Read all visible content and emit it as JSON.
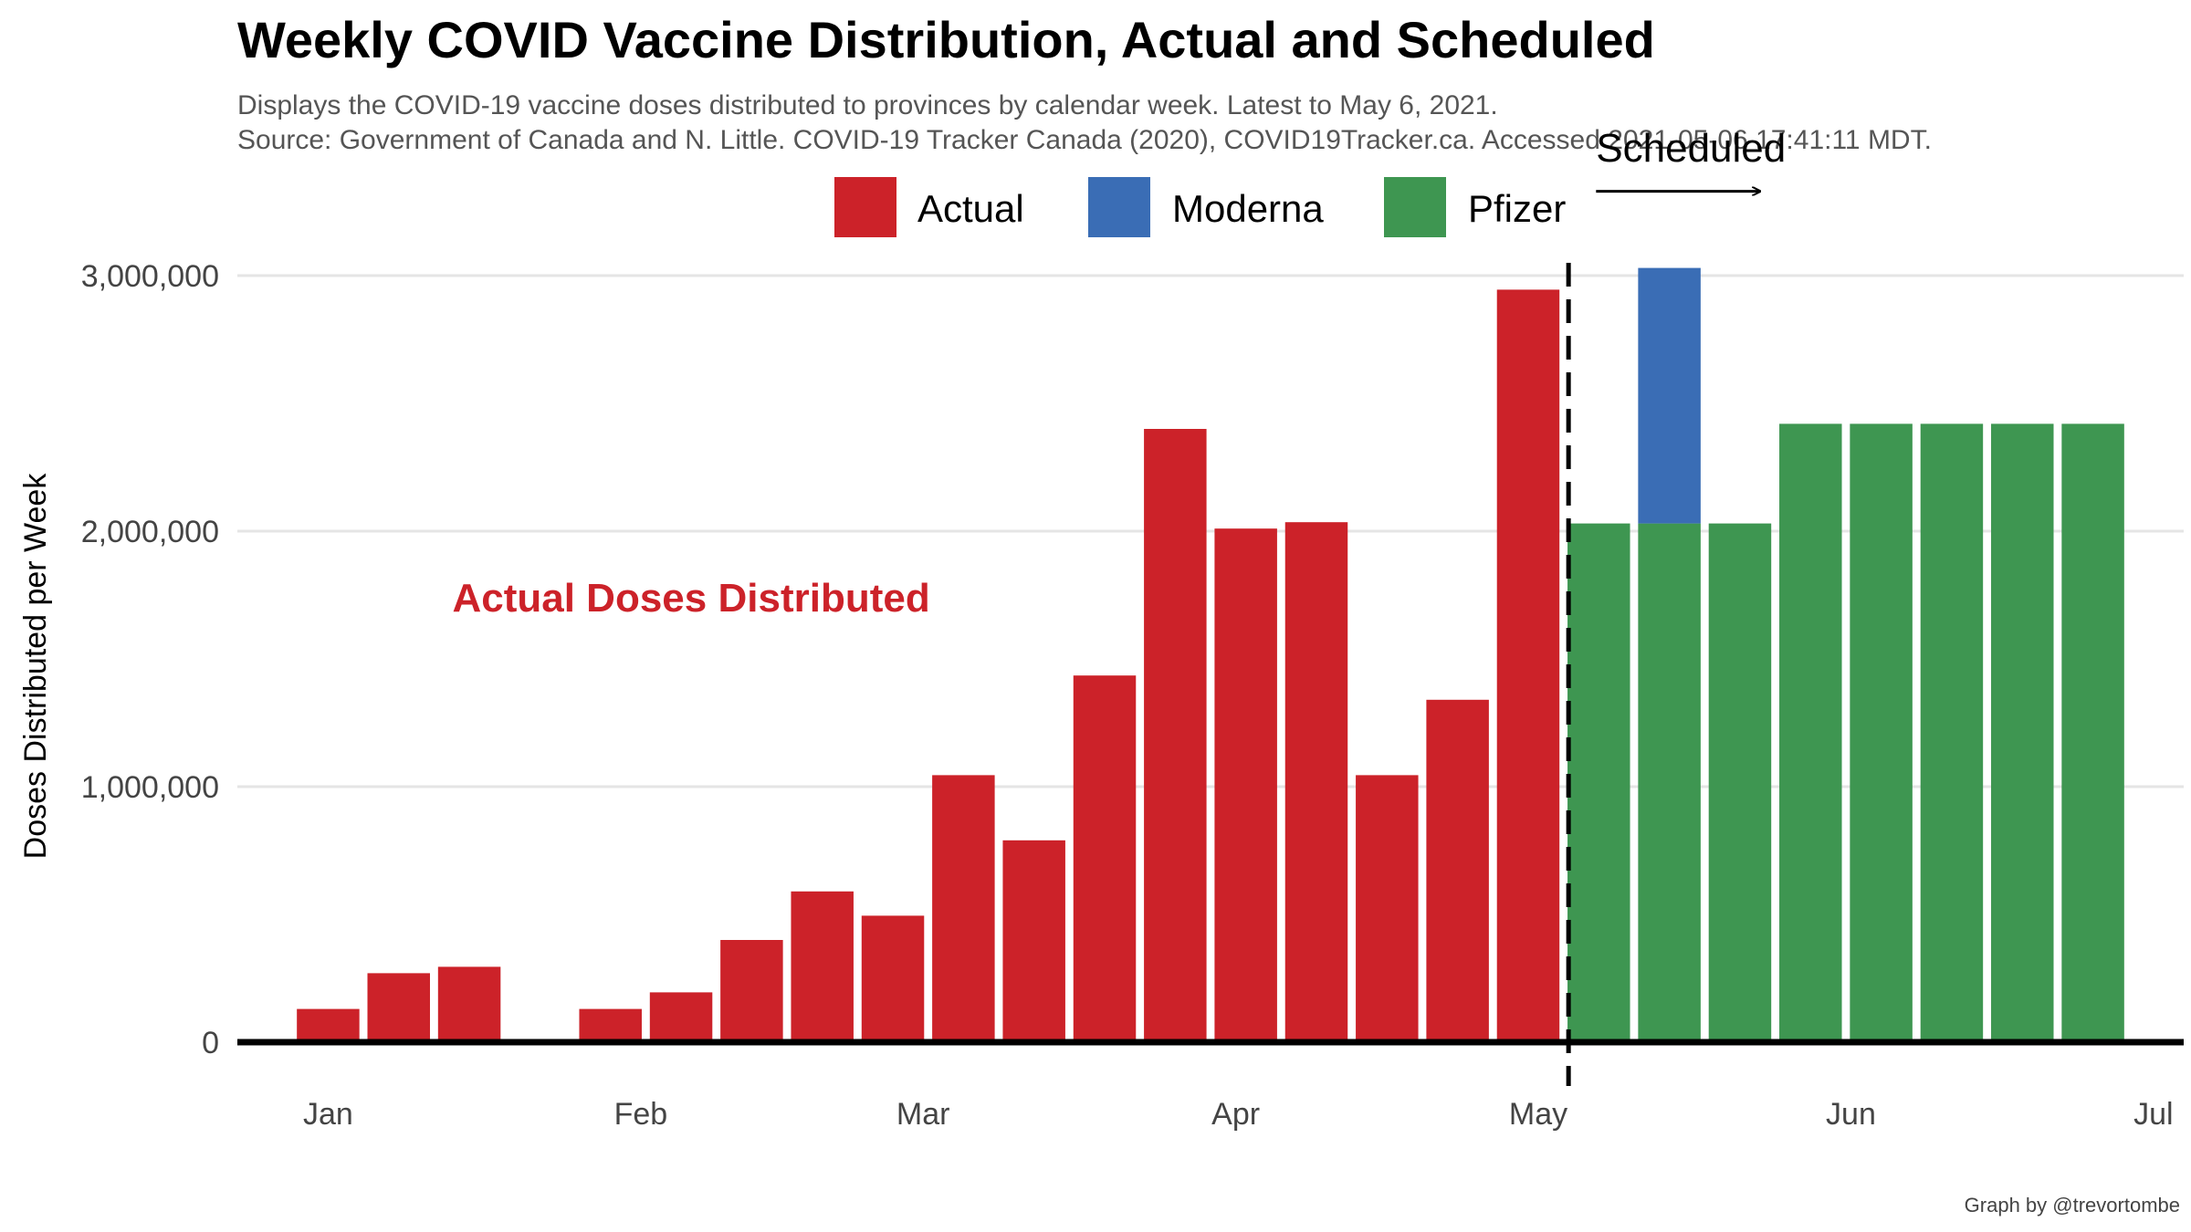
{
  "chart_data": {
    "type": "bar",
    "title": "Weekly COVID Vaccine Distribution, Actual and Scheduled",
    "subtitle_lines": [
      "Displays the COVID-19 vaccine doses distributed to provinces by calendar week. Latest to May 6, 2021.",
      "Source: Government of Canada and N. Little. COVID-19 Tracker Canada (2020), COVID19Tracker.ca. Accessed 2021-05-06 17:41:11 MDT."
    ],
    "ylabel": "Doses Distributed per Week",
    "xlabel": "",
    "ylim": [
      0,
      3000000
    ],
    "y_ticks": [
      0,
      1000000,
      2000000,
      3000000
    ],
    "y_tick_labels": [
      "0",
      "1,000,000",
      "2,000,000",
      "3,000,000"
    ],
    "x_range": [
      "2020-12-23",
      "2021-07-04"
    ],
    "x_ticks": [
      {
        "date": "2021-01-01",
        "label": "Jan"
      },
      {
        "date": "2021-02-01",
        "label": "Feb"
      },
      {
        "date": "2021-03-01",
        "label": "Mar"
      },
      {
        "date": "2021-04-01",
        "label": "Apr"
      },
      {
        "date": "2021-05-01",
        "label": "May"
      },
      {
        "date": "2021-06-01",
        "label": "Jun"
      },
      {
        "date": "2021-07-01",
        "label": "Jul"
      }
    ],
    "grid": "horizontal",
    "legend_position": "top",
    "colors": {
      "Actual": "#cc2229",
      "Moderna": "#3a6db5",
      "Pfizer": "#3e9651",
      "zero_line": "#000000",
      "grid": "#e5e5e5"
    },
    "series": [
      {
        "name": "Actual",
        "x": [
          "2021-01-01",
          "2021-01-08",
          "2021-01-15",
          "2021-01-22",
          "2021-01-29",
          "2021-02-05",
          "2021-02-12",
          "2021-02-19",
          "2021-02-26",
          "2021-03-05",
          "2021-03-12",
          "2021-03-19",
          "2021-03-26",
          "2021-04-02",
          "2021-04-09",
          "2021-04-16",
          "2021-04-23",
          "2021-04-30"
        ],
        "values": [
          130000,
          270000,
          295000,
          0,
          130000,
          195000,
          400000,
          590000,
          495000,
          1045000,
          790000,
          1435000,
          2400000,
          2010000,
          2035000,
          1045000,
          1340000,
          2945000
        ]
      },
      {
        "name": "Pfizer",
        "x": [
          "2021-05-07",
          "2021-05-14",
          "2021-05-21",
          "2021-05-28",
          "2021-06-04",
          "2021-06-11",
          "2021-06-18",
          "2021-06-25"
        ],
        "values": [
          2030000,
          2030000,
          2030000,
          2420000,
          2420000,
          2420000,
          2420000,
          2420000
        ]
      },
      {
        "name": "Moderna",
        "x": [
          "2021-05-07",
          "2021-05-14",
          "2021-05-21",
          "2021-05-28",
          "2021-06-04",
          "2021-06-11",
          "2021-06-18",
          "2021-06-25"
        ],
        "values": [
          0,
          1000000,
          0,
          0,
          0,
          0,
          0,
          0
        ]
      }
    ],
    "stacking": {
      "base": "Pfizer",
      "top": "Moderna"
    },
    "scheduled_divider_date": "2021-05-04",
    "annotations": {
      "actual_label": "Actual Doses Distributed",
      "actual_label_anchor": {
        "date": "2021-02-06",
        "value": 1740000
      },
      "scheduled_label": "Scheduled",
      "scheduled_label_anchor": {
        "date": "2021-05-07",
        "value": 3500000
      },
      "scheduled_arrow": {
        "from_date": "2021-05-07",
        "to_date": "2021-05-23",
        "value": 3330000
      }
    },
    "caption": "Graph by @trevortombe"
  }
}
